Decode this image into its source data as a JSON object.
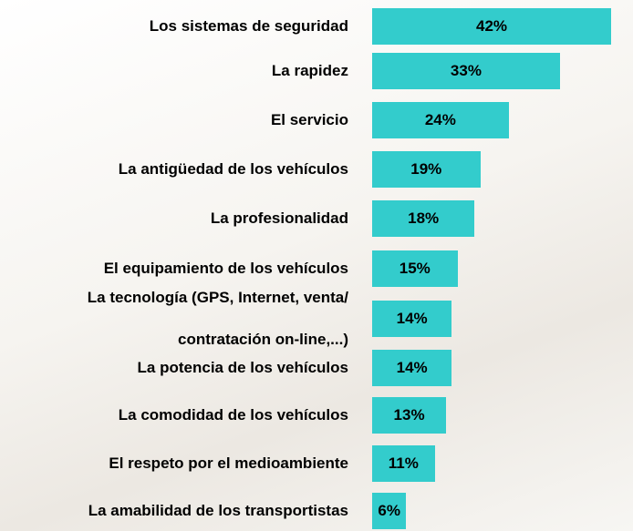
{
  "chart_data": {
    "type": "bar",
    "orientation": "horizontal",
    "color": "#33cccc",
    "categories": [
      "Los sistemas de seguridad",
      "La rapidez",
      "El servicio",
      "La antigüedad de los vehículos",
      "La profesionalidad",
      "El equipamiento de los vehículos",
      "La tecnología (GPS, Internet, venta/ contratación on-line,...)",
      "La potencia de los vehículos",
      "La comodidad de los vehículos",
      "El respeto por el medioambiente",
      "La amabilidad de los transportistas"
    ],
    "values": [
      42,
      33,
      24,
      19,
      18,
      15,
      14,
      14,
      13,
      11,
      6
    ],
    "value_labels": [
      "42%",
      "33%",
      "24%",
      "19%",
      "18%",
      "15%",
      "14%",
      "14%",
      "13%",
      "11%",
      "6%"
    ]
  }
}
